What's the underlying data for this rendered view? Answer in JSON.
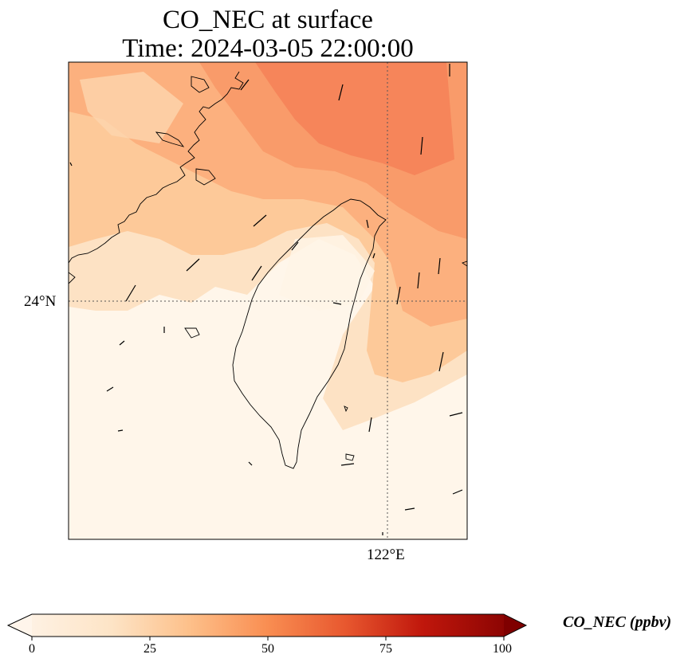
{
  "title": {
    "line1": "CO_NEC at surface",
    "line2": "Time: 2024-03-05 22:00:00"
  },
  "axes": {
    "lat_label": "24°N",
    "lon_label": "122°E"
  },
  "colorbar": {
    "label": "CO_NEC (ppbv)",
    "min": 0,
    "max": 100,
    "ticks": [
      "0",
      "25",
      "50",
      "75",
      "100"
    ],
    "extend": "both",
    "colormap": [
      "#fff5eb",
      "#fdd9b4",
      "#fdae6b",
      "#f16913",
      "#d94801",
      "#b30000",
      "#7f0000"
    ]
  },
  "colors": {
    "plume_core": "#f6855a",
    "background_low": "#fff6ea"
  }
}
